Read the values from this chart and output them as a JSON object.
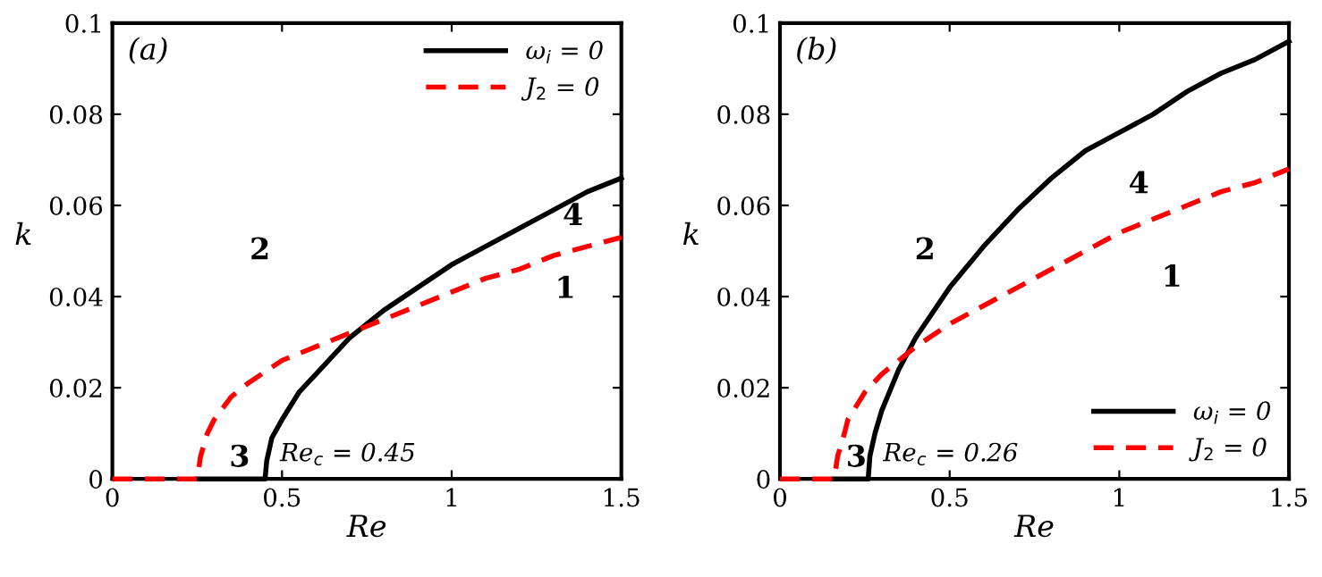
{
  "chart_data": [
    {
      "type": "line",
      "xlabel": "Re",
      "ylabel": "k",
      "xlim": [
        0,
        1.5
      ],
      "ylim": [
        0,
        0.1
      ],
      "xticks": [
        0,
        0.5,
        1,
        1.5
      ],
      "yticks": [
        0,
        0.02,
        0.04,
        0.06,
        0.08,
        0.1
      ],
      "grid": false,
      "legend": "top right",
      "marker": "none",
      "series": [
        {
          "name": "ω$_{i}$ = 0",
          "color": "#000000",
          "line_style": "solid",
          "x": [
            0.25,
            0.45,
            0.455,
            0.47,
            0.5,
            0.55,
            0.6,
            0.7,
            0.8,
            0.9,
            1.0,
            1.1,
            1.2,
            1.3,
            1.4,
            1.5
          ],
          "values": [
            0,
            0,
            0.004,
            0.009,
            0.013,
            0.019,
            0.023,
            0.031,
            0.037,
            0.042,
            0.047,
            0.051,
            0.055,
            0.059,
            0.063,
            0.066
          ]
        },
        {
          "name": "J$_{2}$ = 0",
          "color": "#ff0000",
          "line_style": "dashed",
          "x": [
            0,
            0.25,
            0.26,
            0.28,
            0.3,
            0.35,
            0.4,
            0.5,
            0.6,
            0.7,
            0.8,
            0.9,
            1.0,
            1.1,
            1.2,
            1.3,
            1.4,
            1.5
          ],
          "values": [
            0,
            0,
            0.005,
            0.01,
            0.013,
            0.018,
            0.021,
            0.026,
            0.029,
            0.032,
            0.035,
            0.038,
            0.041,
            0.044,
            0.046,
            0.049,
            0.051,
            0.053
          ]
        }
      ],
      "annotations": [
        "(a)",
        "2",
        "3",
        "4",
        "1",
        {
          "text": "Re$_{c}$ = 0.45",
          "x": 0.45,
          "y": 0
        }
      ]
    },
    {
      "type": "line",
      "xlabel": "Re",
      "ylabel": "k",
      "xlim": [
        0,
        1.5
      ],
      "ylim": [
        0,
        0.1
      ],
      "xticks": [
        0,
        0.5,
        1,
        1.5
      ],
      "yticks": [
        0,
        0.02,
        0.04,
        0.06,
        0.08,
        0.1
      ],
      "grid": false,
      "legend": "bottom right",
      "marker": "none",
      "series": [
        {
          "name": "ω$_{i}$ = 0",
          "color": "#000000",
          "line_style": "solid",
          "x": [
            0.16,
            0.26,
            0.265,
            0.28,
            0.3,
            0.35,
            0.4,
            0.5,
            0.6,
            0.7,
            0.8,
            0.9,
            1.0,
            1.1,
            1.2,
            1.3,
            1.4,
            1.5
          ],
          "values": [
            0,
            0,
            0.005,
            0.01,
            0.015,
            0.024,
            0.031,
            0.042,
            0.051,
            0.059,
            0.066,
            0.072,
            0.076,
            0.08,
            0.085,
            0.089,
            0.092,
            0.096
          ]
        },
        {
          "name": "J$_{2}$ = 0",
          "color": "#ff0000",
          "line_style": "dashed",
          "x": [
            0,
            0.16,
            0.17,
            0.19,
            0.2,
            0.25,
            0.3,
            0.4,
            0.5,
            0.6,
            0.7,
            0.8,
            0.9,
            1.0,
            1.1,
            1.2,
            1.3,
            1.4,
            1.5
          ],
          "values": [
            0,
            0,
            0.005,
            0.01,
            0.013,
            0.019,
            0.023,
            0.029,
            0.034,
            0.038,
            0.042,
            0.046,
            0.05,
            0.054,
            0.057,
            0.06,
            0.063,
            0.065,
            0.068
          ]
        }
      ],
      "annotations": [
        "(b)",
        "2",
        "3",
        "4",
        "1",
        {
          "text": "Re$_{c}$ = 0.26",
          "x": 0.26,
          "y": 0
        }
      ]
    }
  ]
}
